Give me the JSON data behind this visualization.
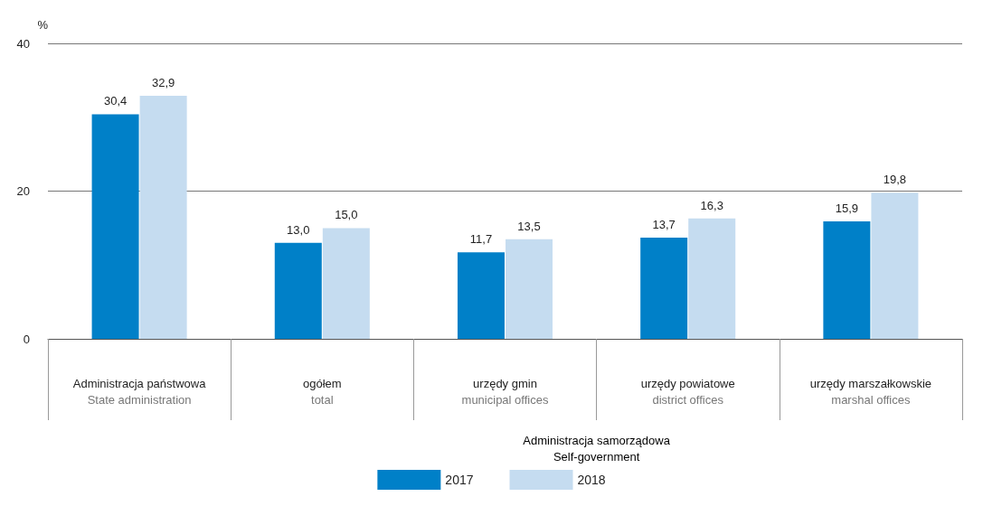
{
  "chart_data": {
    "type": "bar",
    "ylabel": "%",
    "categories": [
      "Administracja państwowa\nState administration",
      "ogółem\ntotal",
      "urzędy gmin\nmunicipal offices",
      "urzędy powiatowe\ndistrict offices",
      "urzędy marszałkowskie\nmarshal offices"
    ],
    "series": [
      {
        "name": "2017",
        "color": "#0080c8",
        "values": [
          30.4,
          13.0,
          11.7,
          13.7,
          15.9
        ],
        "value_labels": [
          "30,4",
          "13,0",
          "11,7",
          "13,7",
          "15,9"
        ]
      },
      {
        "name": "2018",
        "color": "#c5dcf0",
        "values": [
          32.9,
          15.0,
          13.5,
          16.3,
          19.8
        ],
        "value_labels": [
          "32,9",
          "15,0",
          "13,5",
          "16,3",
          "19,8"
        ]
      }
    ],
    "ylim": [
      0,
      40
    ],
    "yticks": [
      0,
      20,
      40
    ],
    "grid": "y",
    "legend": "bottom",
    "annotations": [
      "Administracja samorządowa\nSelf-government"
    ]
  }
}
